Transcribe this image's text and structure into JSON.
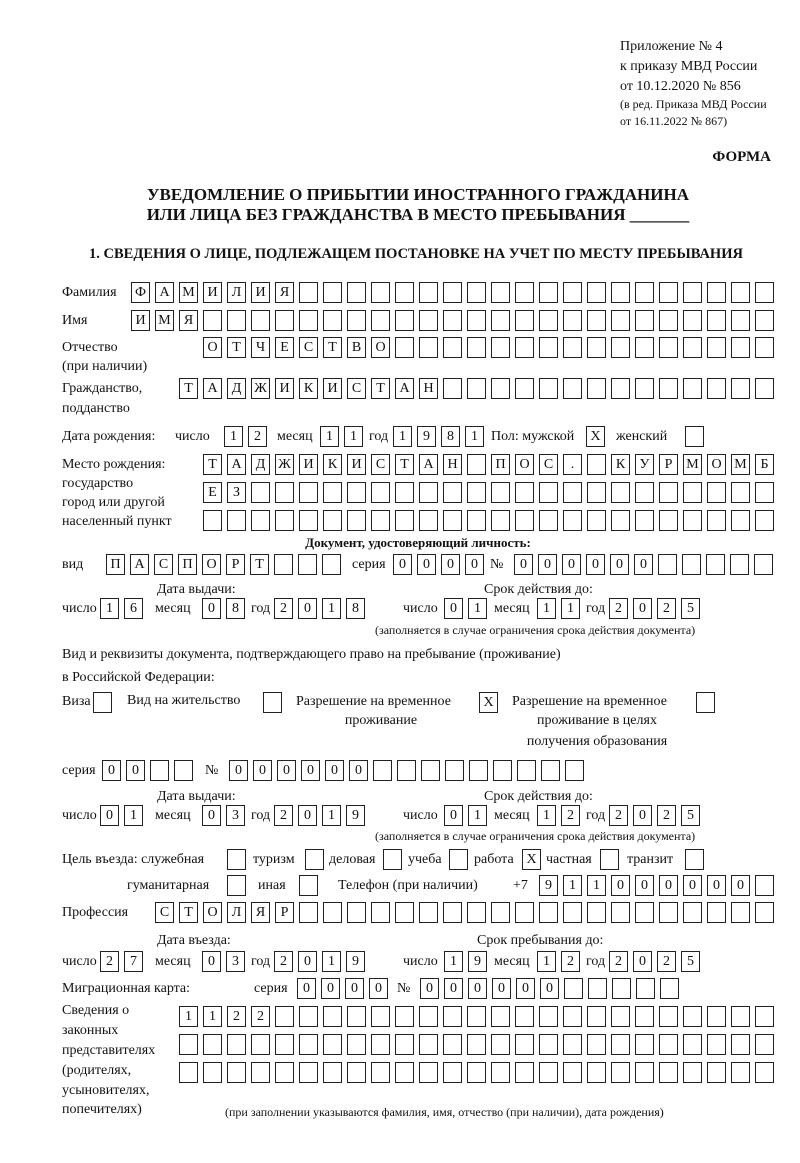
{
  "header": {
    "appendix": [
      "Приложение № 4",
      "к приказу МВД России",
      "от 10.12.2020 № 856"
    ],
    "revision": [
      "(в ред. Приказа МВД России",
      "от 16.11.2022 № 867)"
    ],
    "forma": "ФОРМА",
    "title": [
      "УВЕДОМЛЕНИЕ О ПРИБЫТИИ ИНОСТРАННОГО ГРАЖДАНИНА",
      "ИЛИ ЛИЦА БЕЗ ГРАЖДАНСТВА В МЕСТО ПРЕБЫВАНИЯ _______"
    ],
    "section1": "1. СВЕДЕНИЯ О ЛИЦЕ, ПОДЛЕЖАЩЕМ ПОСТАНОВКЕ НА УЧЕТ ПО МЕСТУ ПРЕБЫВАНИЯ"
  },
  "person": {
    "surname_label": "Фамилия",
    "surname": "ФАМИЛИЯ",
    "name_label": "Имя",
    "name": "ИМЯ",
    "patronymic_label": [
      "Отчество",
      "(при наличии)"
    ],
    "patronymic": "ОТЧЕСТВО",
    "citizenship_label": [
      "Гражданство,",
      "подданство"
    ],
    "citizenship": "ТАДЖИКИСТАН"
  },
  "common": {
    "day": "число",
    "month": "месяц",
    "year": "год"
  },
  "birth": {
    "label": "Дата рождения:",
    "day": "12",
    "month": "11",
    "year": "1981",
    "sex_label": "Пол: мужской",
    "male": "X",
    "female_label": "женский",
    "female": ""
  },
  "birthplace": {
    "label": [
      "Место рождения:",
      "государство",
      "город или другой",
      "населенный пункт"
    ],
    "rows": [
      "ТАДЖИКИСТАН ПОС. КУРМОМБ",
      "ЕЗ",
      ""
    ]
  },
  "id_doc": {
    "heading": "Документ, удостоверяющий личность:",
    "type_label": "вид",
    "type": "ПАСПОРТ",
    "series_label": "серия",
    "series": "0000",
    "number_label": "№",
    "number": "000000",
    "issue_label": "Дата выдачи:",
    "issue": {
      "day": "16",
      "month": "08",
      "year": "2018"
    },
    "valid_label": "Срок действия до:",
    "valid": {
      "day": "01",
      "month": "11",
      "year": "2025"
    },
    "note": "(заполняется в случае ограничения срока действия документа)"
  },
  "stay_doc": {
    "label": [
      "Вид и реквизиты документа, подтверждающего право на пребывание (проживание)",
      "в Российской Федерации:"
    ],
    "visa_label": "Виза",
    "visa": "",
    "residence_label": "Вид на жительство",
    "residence": "",
    "trp_label": [
      "Разрешение на временное",
      "проживание"
    ],
    "trp": "X",
    "trp_edu_label": [
      "Разрешение на временное",
      "проживание в целях",
      "получения образования"
    ],
    "trp_edu": "",
    "series_label": "серия",
    "series": "00",
    "number_label": "№",
    "number": "000000",
    "issue_label": "Дата выдачи:",
    "issue": {
      "day": "01",
      "month": "03",
      "year": "2019"
    },
    "valid_label": "Срок действия до:",
    "valid": {
      "day": "01",
      "month": "12",
      "year": "2025"
    },
    "note": "(заполняется в случае ограничения срока действия документа)"
  },
  "purpose": {
    "label": "Цель въезда: служебная",
    "official": "",
    "tourism_label": "туризм",
    "tourism": "",
    "business_label": "деловая",
    "business": "",
    "study_label": "учеба",
    "study": "",
    "work_label": "работа",
    "work": "X",
    "private_label": "частная",
    "private": "",
    "transit_label": "транзит",
    "transit": "",
    "humanitarian_label": "гуманитарная",
    "humanitarian": "",
    "other_label": "иная",
    "other": "",
    "phone_label": "Телефон (при наличии)",
    "phone_prefix": "+7",
    "phone": "911000000"
  },
  "profession": {
    "label": "Профессия",
    "value": "СТОЛЯР"
  },
  "entry": {
    "label": "Дата въезда:",
    "date": {
      "day": "27",
      "month": "03",
      "year": "2019"
    },
    "until_label": "Срок пребывания до:",
    "until": {
      "day": "19",
      "month": "12",
      "year": "2025"
    }
  },
  "migration_card": {
    "label": "Миграционная карта:",
    "series_label": "серия",
    "series": "0000",
    "number_label": "№",
    "number": "000000"
  },
  "representatives": {
    "label": [
      "Сведения о",
      "законных",
      "представителях",
      "(родителях,",
      "усыновителях,",
      "попечителях)"
    ],
    "rows": [
      "1122",
      "",
      ""
    ],
    "note": "(при заполнении указываются фамилия, имя, отчество (при наличии), дата рождения)"
  }
}
